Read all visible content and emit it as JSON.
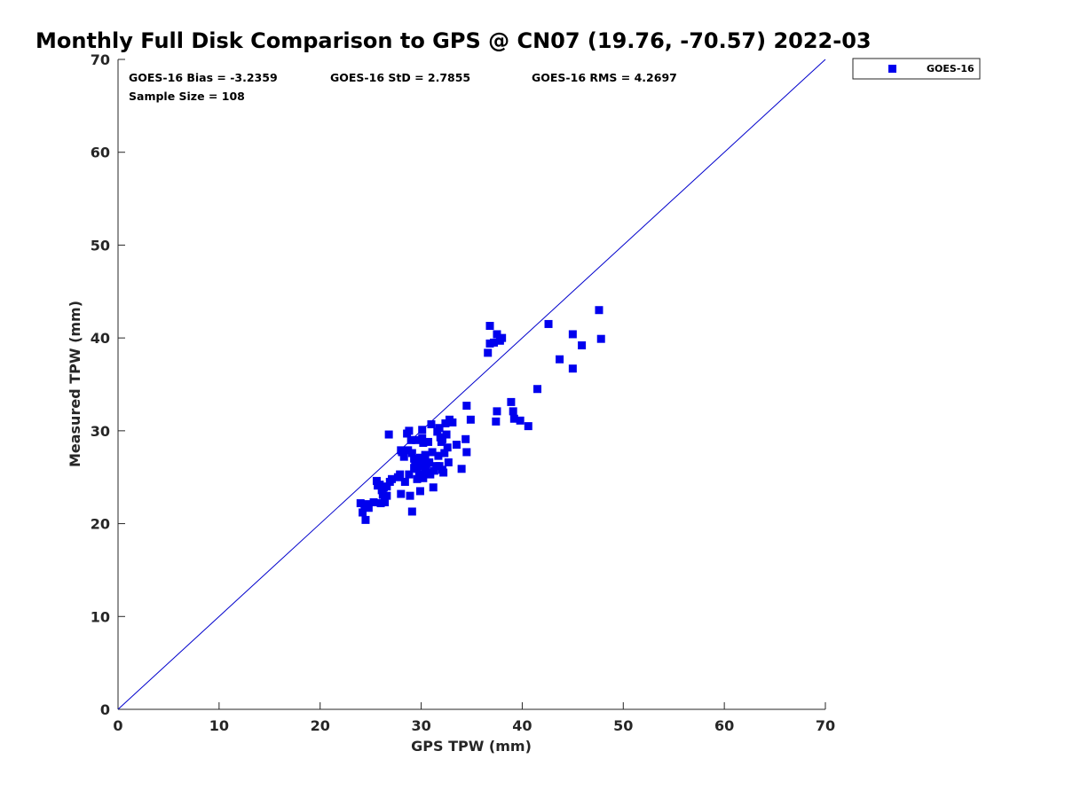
{
  "chart_data": {
    "type": "scatter",
    "title": "Monthly Full Disk Comparison to GPS @ CN07 (19.76, -70.57) 2022-03",
    "xlabel": "GPS TPW (mm)",
    "ylabel": "Measured TPW (mm)",
    "xlim": [
      0,
      70
    ],
    "ylim": [
      0,
      70
    ],
    "xticks": [
      0,
      10,
      20,
      30,
      40,
      50,
      60,
      70
    ],
    "yticks": [
      0,
      10,
      20,
      30,
      40,
      50,
      60,
      70
    ],
    "grid": false,
    "legend_position": "top-right-outside",
    "reference_line": {
      "from": [
        0,
        0
      ],
      "to": [
        70,
        70
      ],
      "color": "#0000cc"
    },
    "stats": {
      "bias": "GOES-16 Bias = -3.2359",
      "std": "GOES-16 StD = 2.7855",
      "rms": "GOES-16 RMS = 4.2697",
      "sample": "Sample Size = 108"
    },
    "series": [
      {
        "name": "GOES-16",
        "color": "#0000ee",
        "marker": "square",
        "points": [
          [
            24.0,
            22.2
          ],
          [
            24.2,
            21.2
          ],
          [
            24.4,
            21.8
          ],
          [
            24.5,
            20.4
          ],
          [
            24.6,
            22.1
          ],
          [
            24.8,
            21.7
          ],
          [
            25.3,
            22.3
          ],
          [
            25.6,
            24.6
          ],
          [
            25.9,
            24.2
          ],
          [
            26.0,
            22.2
          ],
          [
            26.1,
            23.6
          ],
          [
            26.2,
            23.1
          ],
          [
            26.4,
            22.3
          ],
          [
            26.6,
            23.0
          ],
          [
            26.6,
            24.0
          ],
          [
            26.9,
            24.5
          ],
          [
            27.1,
            24.8
          ],
          [
            27.9,
            25.3
          ],
          [
            28.0,
            23.2
          ],
          [
            28.1,
            27.7
          ],
          [
            28.3,
            27.2
          ],
          [
            28.4,
            24.5
          ],
          [
            28.6,
            29.7
          ],
          [
            28.7,
            27.9
          ],
          [
            28.8,
            25.3
          ],
          [
            28.8,
            30.0
          ],
          [
            28.9,
            23.0
          ],
          [
            29.0,
            29.0
          ],
          [
            29.1,
            27.6
          ],
          [
            29.3,
            27.0
          ],
          [
            29.4,
            26.5
          ],
          [
            29.5,
            29.0
          ],
          [
            29.6,
            24.8
          ],
          [
            29.7,
            26.7
          ],
          [
            29.8,
            25.3
          ],
          [
            29.9,
            27.1
          ],
          [
            29.9,
            23.5
          ],
          [
            30.0,
            26.2
          ],
          [
            30.1,
            29.2
          ],
          [
            30.1,
            30.1
          ],
          [
            30.2,
            24.9
          ],
          [
            30.2,
            28.7
          ],
          [
            30.3,
            26.8
          ],
          [
            30.4,
            27.4
          ],
          [
            30.5,
            25.8
          ],
          [
            30.6,
            25.5
          ],
          [
            30.7,
            28.8
          ],
          [
            30.8,
            26.6
          ],
          [
            30.9,
            25.3
          ],
          [
            31.0,
            30.7
          ],
          [
            31.1,
            27.7
          ],
          [
            31.2,
            23.9
          ],
          [
            31.3,
            25.7
          ],
          [
            31.5,
            26.2
          ],
          [
            31.6,
            29.9
          ],
          [
            31.7,
            27.3
          ],
          [
            31.8,
            30.3
          ],
          [
            31.9,
            29.3
          ],
          [
            32.0,
            28.8
          ],
          [
            32.1,
            25.8
          ],
          [
            32.1,
            29.1
          ],
          [
            32.2,
            25.5
          ],
          [
            32.3,
            27.6
          ],
          [
            32.4,
            30.8
          ],
          [
            32.5,
            29.6
          ],
          [
            32.6,
            28.2
          ],
          [
            32.7,
            26.6
          ],
          [
            32.8,
            31.2
          ],
          [
            33.1,
            30.9
          ],
          [
            33.5,
            28.5
          ],
          [
            34.0,
            25.9
          ],
          [
            34.4,
            29.1
          ],
          [
            34.5,
            32.7
          ],
          [
            34.5,
            27.7
          ],
          [
            34.9,
            31.2
          ],
          [
            26.8,
            29.6
          ],
          [
            29.1,
            21.3
          ],
          [
            26.3,
            23.9
          ],
          [
            36.6,
            38.4
          ],
          [
            36.8,
            39.4
          ],
          [
            36.8,
            41.3
          ],
          [
            37.2,
            39.5
          ],
          [
            37.4,
            31.0
          ],
          [
            37.5,
            32.1
          ],
          [
            37.5,
            40.4
          ],
          [
            37.8,
            39.7
          ],
          [
            38.0,
            40.0
          ],
          [
            38.9,
            33.1
          ],
          [
            39.1,
            32.1
          ],
          [
            39.2,
            31.3
          ],
          [
            39.8,
            31.1
          ],
          [
            40.6,
            30.5
          ],
          [
            41.5,
            34.5
          ],
          [
            42.6,
            41.5
          ],
          [
            43.7,
            37.7
          ],
          [
            45.0,
            40.4
          ],
          [
            45.0,
            36.7
          ],
          [
            45.9,
            39.2
          ],
          [
            47.6,
            43.0
          ],
          [
            47.8,
            39.9
          ],
          [
            28.0,
            27.9
          ],
          [
            29.3,
            26.0
          ],
          [
            30.5,
            26.4
          ],
          [
            31.8,
            26.2
          ],
          [
            29.6,
            25.9
          ],
          [
            30.4,
            25.7
          ],
          [
            25.7,
            24.1
          ],
          [
            27.7,
            25.0
          ]
        ]
      }
    ]
  }
}
